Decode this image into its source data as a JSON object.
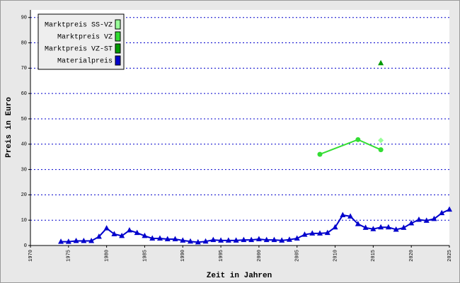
{
  "chart_data": {
    "type": "line",
    "xlabel": "Zeit in Jahren",
    "ylabel": "Preis in Euro",
    "xlim": [
      1970,
      2025
    ],
    "xticks": [
      1970,
      1975,
      1980,
      1985,
      1990,
      1995,
      2000,
      2005,
      2010,
      2015,
      2020,
      2025
    ],
    "ylim": [
      0,
      93
    ],
    "yticks": [
      0,
      10,
      20,
      30,
      40,
      50,
      60,
      70,
      80,
      90
    ],
    "grid": true,
    "legend": "top-left",
    "series": [
      {
        "name": "Marktpreis SS-VZ",
        "color": "#99ff99",
        "marker": "diamond",
        "x": [
          2016
        ],
        "values": [
          41.5
        ]
      },
      {
        "name": "Marktpreis VZ",
        "color": "#33dd33",
        "marker": "circle",
        "x": [
          2008,
          2013,
          2016
        ],
        "values": [
          36,
          41.8,
          37.8
        ]
      },
      {
        "name": "Marktpreis VZ-ST",
        "color": "#009900",
        "marker": "triangle",
        "x": [
          2016
        ],
        "values": [
          72
        ]
      },
      {
        "name": "Materialpreis",
        "color": "#0000cc",
        "marker": "triangle",
        "x": [
          1974,
          1975,
          1976,
          1977,
          1978,
          1979,
          1980,
          1981,
          1982,
          1983,
          1984,
          1985,
          1986,
          1987,
          1988,
          1989,
          1990,
          1991,
          1992,
          1993,
          1994,
          1995,
          1996,
          1997,
          1998,
          1999,
          2000,
          2001,
          2002,
          2003,
          2004,
          2005,
          2006,
          2007,
          2008,
          2009,
          2010,
          2011,
          2012,
          2013,
          2014,
          2015,
          2016,
          2017,
          2018,
          2019,
          2020,
          2021,
          2022,
          2023,
          2024,
          2025
        ],
        "values": [
          1.5,
          1.5,
          1.8,
          1.8,
          1.8,
          3.5,
          6.8,
          4.5,
          3.8,
          6.0,
          5.0,
          3.8,
          2.8,
          2.8,
          2.5,
          2.5,
          2.0,
          1.6,
          1.3,
          1.6,
          2.2,
          2.0,
          2.0,
          2.0,
          2.2,
          2.2,
          2.5,
          2.2,
          2.2,
          2.0,
          2.3,
          2.8,
          4.3,
          4.8,
          4.8,
          5.0,
          7.2,
          12.0,
          11.5,
          8.5,
          7.0,
          6.5,
          7.2,
          7.2,
          6.3,
          7.0,
          8.8,
          10.2,
          9.8,
          10.5,
          12.8,
          14.2
        ]
      }
    ]
  }
}
